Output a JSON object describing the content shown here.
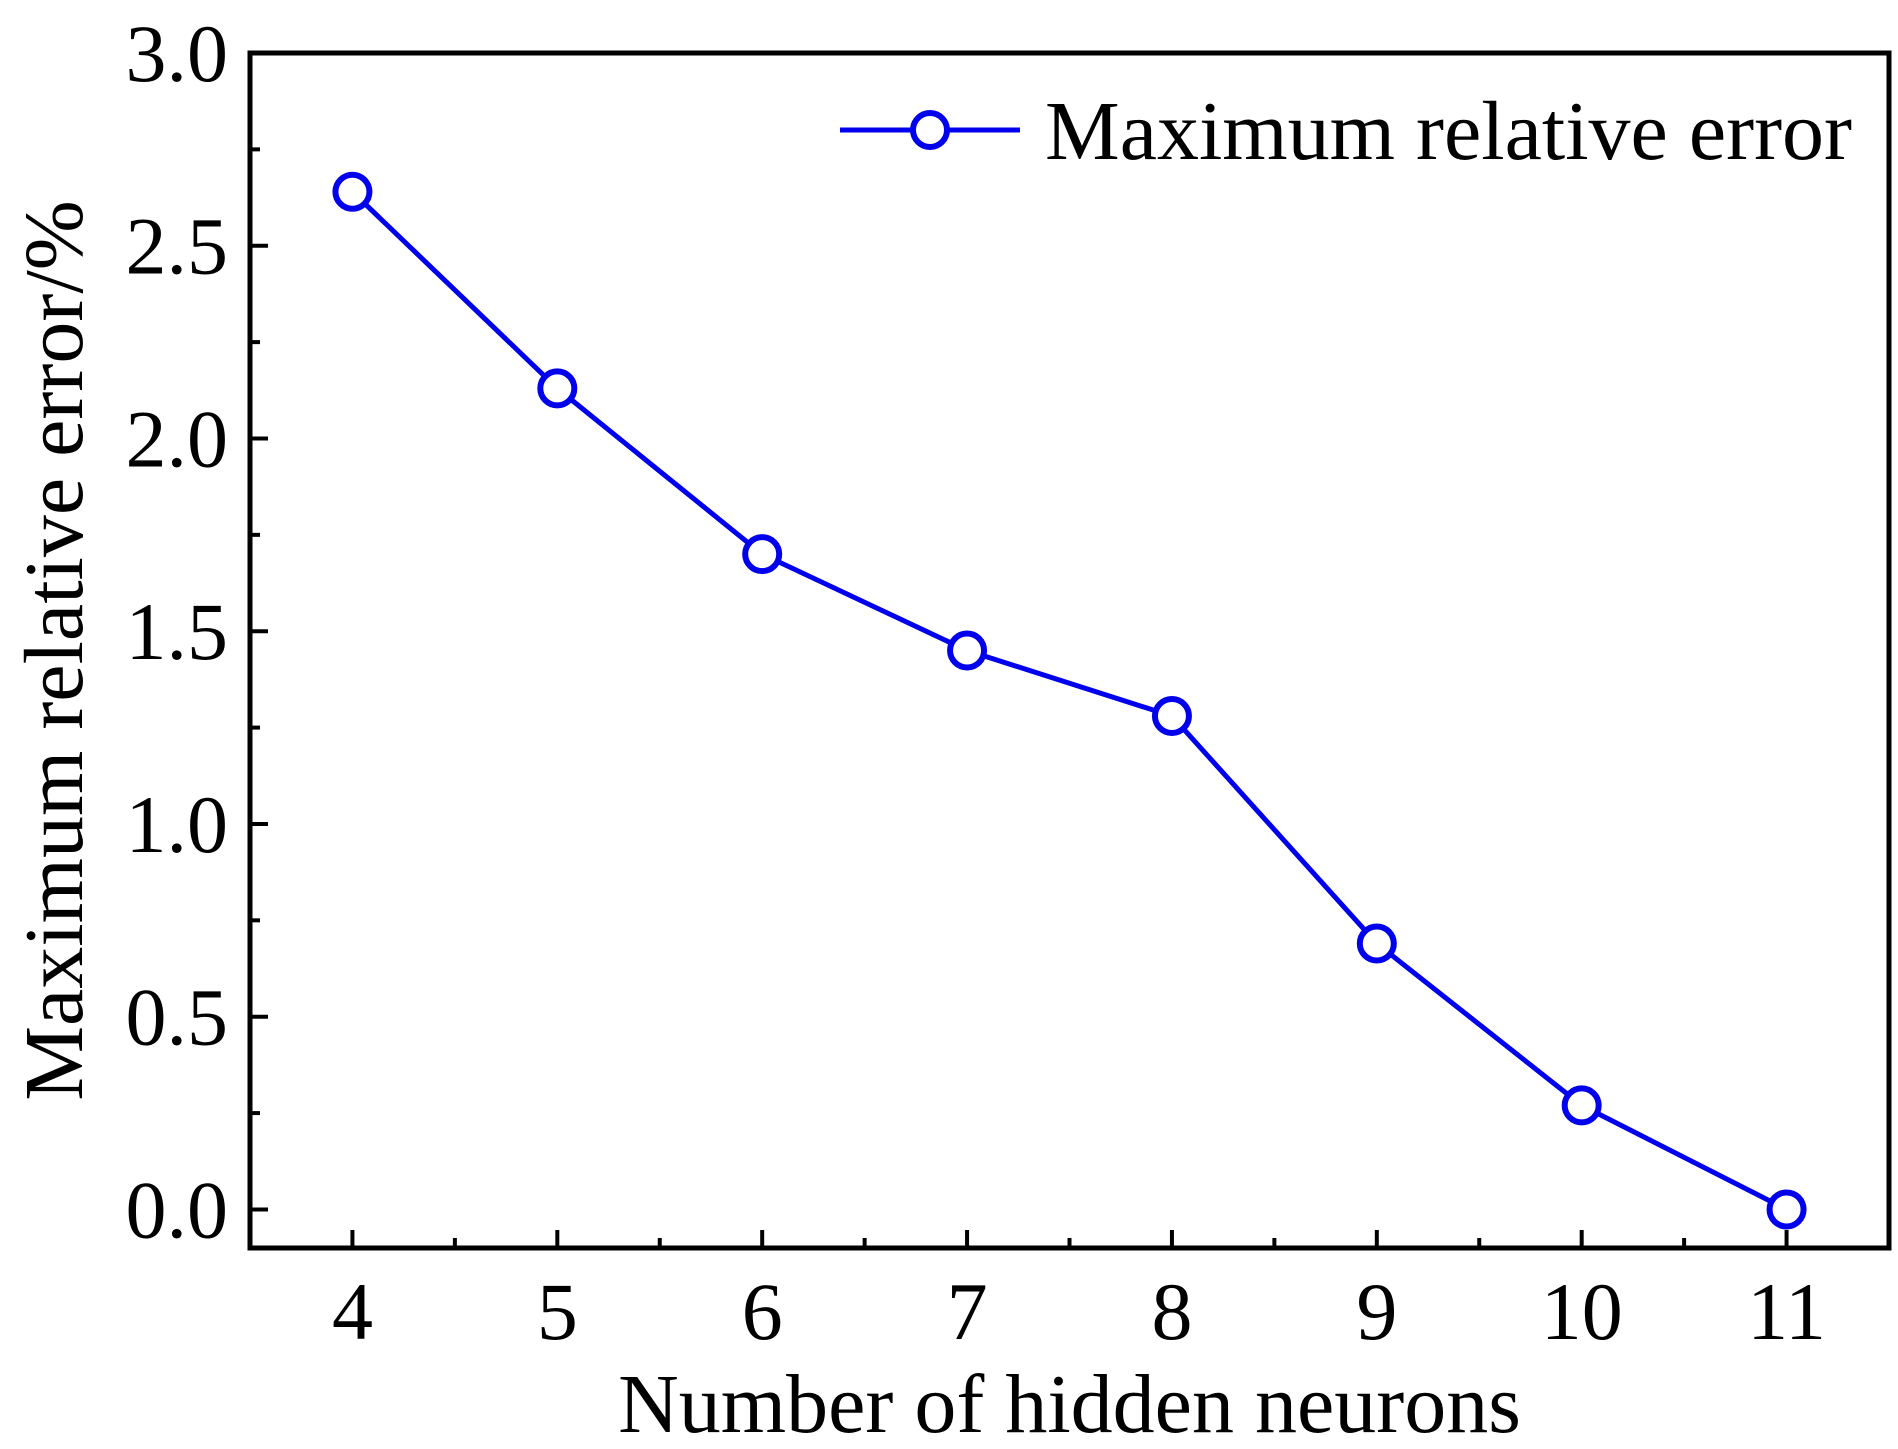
{
  "chart_data": {
    "type": "line",
    "title": "",
    "xlabel": "Number of hidden neurons",
    "ylabel": "Maximum relative error/%",
    "xlim": [
      3.5,
      11.5
    ],
    "ylim": [
      -0.1,
      3.0
    ],
    "x_ticks": [
      4,
      5,
      6,
      7,
      8,
      9,
      10,
      11
    ],
    "x_tick_labels": [
      "4",
      "5",
      "6",
      "7",
      "8",
      "9",
      "10",
      "11"
    ],
    "y_ticks": [
      0.0,
      0.5,
      1.0,
      1.5,
      2.0,
      2.5,
      3.0
    ],
    "y_tick_labels": [
      "0.0",
      "0.5",
      "1.0",
      "1.5",
      "2.0",
      "2.5",
      "3.0"
    ],
    "grid": false,
    "legend_position": "top-right",
    "series": [
      {
        "name": "Maximum relative error",
        "color": "#0000ee",
        "marker": "open-circle",
        "x": [
          4,
          5,
          6,
          7,
          8,
          9,
          10,
          11
        ],
        "y": [
          2.64,
          2.13,
          1.7,
          1.45,
          1.28,
          0.69,
          0.27,
          0.0
        ]
      }
    ]
  }
}
